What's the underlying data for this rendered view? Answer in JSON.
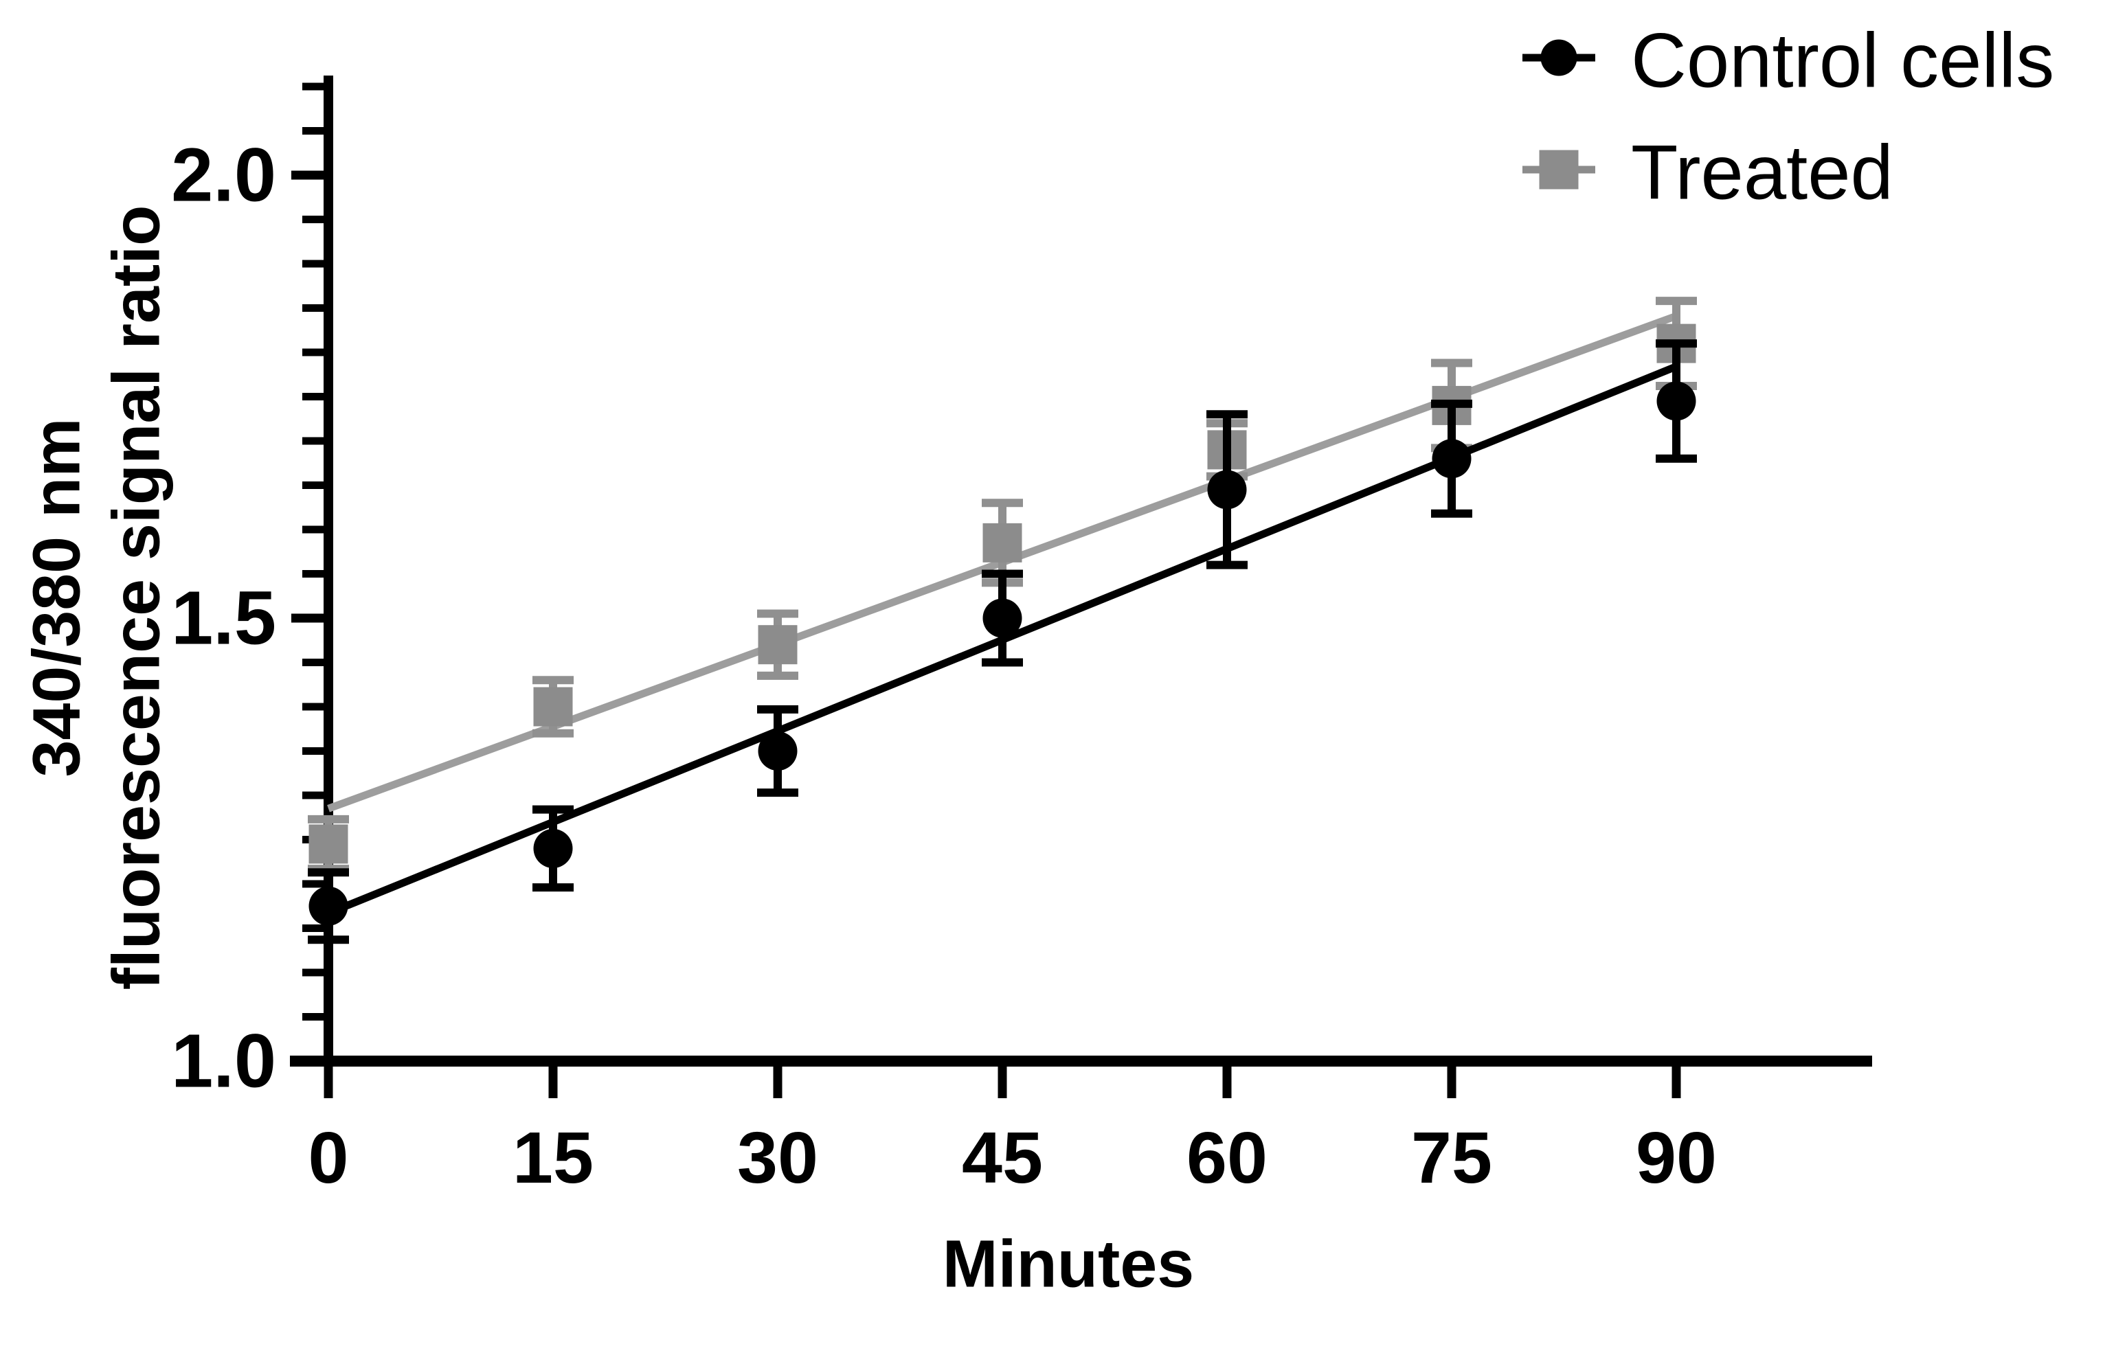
{
  "chart_data": {
    "type": "scatter",
    "title": "",
    "xlabel": "Minutes",
    "ylabel_lines": [
      "340/380 nm",
      "fluorescence signal ratio"
    ],
    "x": [
      0,
      15,
      30,
      45,
      60,
      75,
      90
    ],
    "x_tick_labels": [
      "0",
      "15",
      "30",
      "45",
      "60",
      "75",
      "90"
    ],
    "y_major_ticks": [
      1.0,
      1.5,
      2.0
    ],
    "y_major_tick_labels": [
      "1.0",
      "1.5",
      "2.0"
    ],
    "y_minor_tick_step": 0.05,
    "xlim": [
      0,
      90
    ],
    "ylim": [
      1.0,
      2.112
    ],
    "grid": false,
    "legend_position": "top-right",
    "series": [
      {
        "name": "Treated",
        "marker": "square",
        "marker_color": "#8c8c8c",
        "line_color": "#9d9d9d",
        "error_color": "#909090",
        "values": [
          1.245,
          1.4,
          1.47,
          1.585,
          1.69,
          1.74,
          1.81
        ],
        "errors": [
          0.028,
          0.03,
          0.035,
          0.045,
          0.03,
          0.048,
          0.048
        ],
        "fit_line": {
          "x0": 0,
          "y0": 1.285,
          "x1": 90,
          "y1": 1.841
        }
      },
      {
        "name": "Control cells",
        "marker": "circle",
        "marker_color": "#000000",
        "line_color": "#000000",
        "error_color": "#000000",
        "values": [
          1.175,
          1.24,
          1.35,
          1.5,
          1.645,
          1.68,
          1.745
        ],
        "errors": [
          0.038,
          0.044,
          0.047,
          0.05,
          0.085,
          0.062,
          0.065
        ],
        "fit_line": {
          "x0": 0,
          "y0": 1.167,
          "x1": 90,
          "y1": 1.784
        }
      }
    ],
    "legend": [
      {
        "label": "Control cells",
        "marker": "circle",
        "color": "#000000"
      },
      {
        "label": "Treated",
        "marker": "square",
        "color": "#8c8c8c"
      }
    ]
  }
}
